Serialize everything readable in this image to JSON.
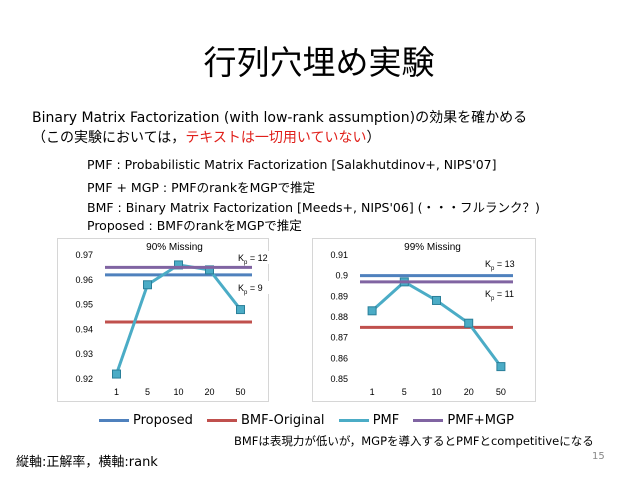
{
  "slide": {
    "title": "行列穴埋め実験",
    "line1": "Binary Matrix Factorization (with low-rank assumption)の効果を確かめる",
    "line2_prefix": "（この実験においては，",
    "line2_red": "テキストは一切用いていない",
    "line2_suffix": "）",
    "methods": [
      "PMF : Probabilistic Matrix Factorization [Salakhutdinov+, NIPS'07]",
      "PMF + MGP : PMFのrankをMGPで推定",
      "BMF : Binary Matrix Factorization [Meeds+, NIPS'06]  (・・・フルランク？)",
      "Proposed : BMFのrankをMGPで推定"
    ],
    "note": "BMFは表現力が低いが，MGPを導入するとPMFとcompetitiveになる",
    "axis_note": "縦軸:正解率，横軸:rank",
    "page_number": "15"
  },
  "legend": {
    "items": [
      {
        "label": "Proposed",
        "color": "#4f81bd"
      },
      {
        "label": "BMF-Original",
        "color": "#c0504d"
      },
      {
        "label": "PMF",
        "color": "#4bacc6"
      },
      {
        "label": "PMF+MGP",
        "color": "#8064a2"
      }
    ]
  },
  "chart_data": [
    {
      "type": "line",
      "title": "90% Missing",
      "categories": [
        "1",
        "5",
        "10",
        "20",
        "50"
      ],
      "ylim": [
        0.92,
        0.97
      ],
      "yticks": [
        "0.92",
        "0.93",
        "0.94",
        "0.95",
        "0.96",
        "0.97"
      ],
      "series": [
        {
          "name": "Proposed",
          "values": [
            0.962,
            0.962,
            0.962,
            0.962,
            0.962
          ]
        },
        {
          "name": "BMF-Original",
          "values": [
            0.943,
            0.943,
            0.943,
            0.943,
            0.943
          ]
        },
        {
          "name": "PMF",
          "values": [
            0.922,
            0.958,
            0.966,
            0.964,
            0.948
          ]
        },
        {
          "name": "PMF+MGP",
          "values": [
            0.965,
            0.965,
            0.965,
            0.965,
            0.965
          ]
        }
      ],
      "annotations": [
        {
          "text": "Kp = 12",
          "label": "K",
          "sub": "p",
          "value": "= 12"
        },
        {
          "text": "Kp = 9",
          "label": "K",
          "sub": "p",
          "value": "= 9"
        }
      ]
    },
    {
      "type": "line",
      "title": "99% Missing",
      "categories": [
        "1",
        "5",
        "10",
        "20",
        "50"
      ],
      "ylim": [
        0.85,
        0.91
      ],
      "yticks": [
        "0.85",
        "0.86",
        "0.87",
        "0.88",
        "0.89",
        "0.9",
        "0.91"
      ],
      "series": [
        {
          "name": "Proposed",
          "values": [
            0.9,
            0.9,
            0.9,
            0.9,
            0.9
          ]
        },
        {
          "name": "BMF-Original",
          "values": [
            0.875,
            0.875,
            0.875,
            0.875,
            0.875
          ]
        },
        {
          "name": "PMF",
          "values": [
            0.883,
            0.897,
            0.888,
            0.877,
            0.856
          ]
        },
        {
          "name": "PMF+MGP",
          "values": [
            0.897,
            0.897,
            0.897,
            0.897,
            0.897
          ]
        }
      ],
      "annotations": [
        {
          "text": "Kp = 13",
          "label": "K",
          "sub": "p",
          "value": "= 13"
        },
        {
          "text": "Kp = 11",
          "label": "K",
          "sub": "p",
          "value": "= 11"
        }
      ]
    }
  ]
}
